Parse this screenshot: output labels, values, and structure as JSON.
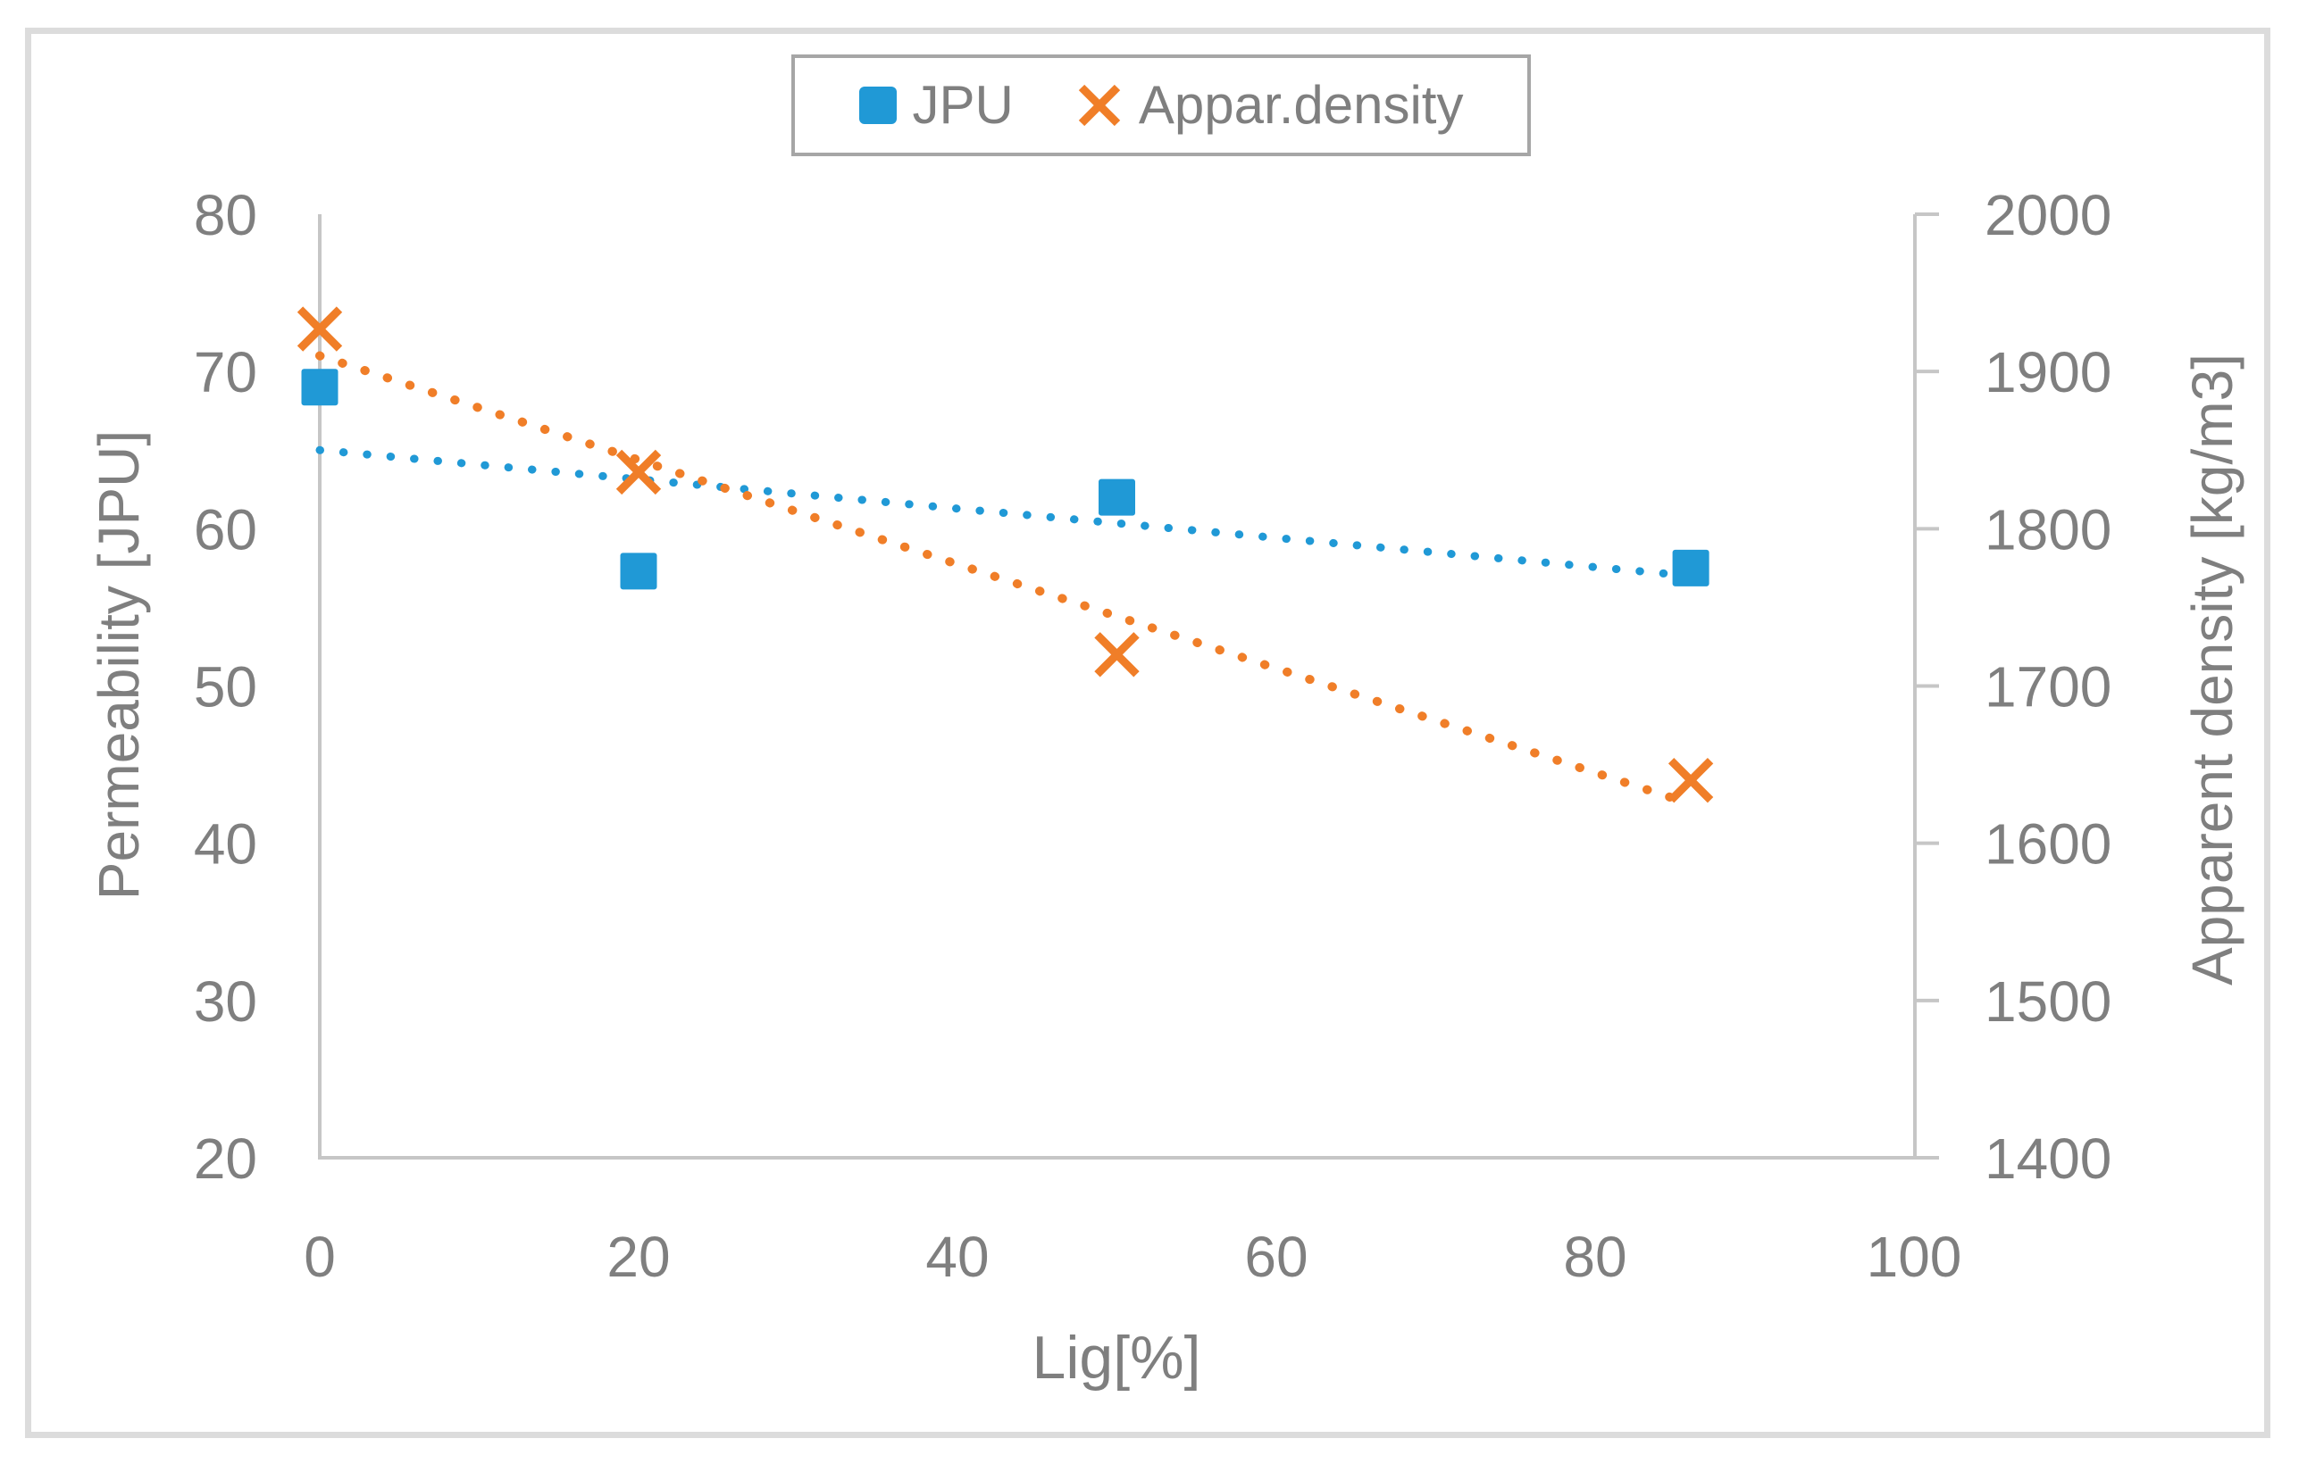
{
  "figure": {
    "background": "#FFFFFF"
  },
  "colors": {
    "jpu": "#2099D6",
    "density": "#F07E28",
    "axis_line": "#C6C6C6",
    "tick_text": "#7F7F7F",
    "figure_border": "#DCDCDC",
    "legend_border": "#A6A6A6"
  },
  "legend": {
    "items": [
      {
        "label": "JPU",
        "marker": "square",
        "color": "#2099D6"
      },
      {
        "label": "Appar.density",
        "marker": "x",
        "color": "#F07E28"
      }
    ]
  },
  "chart_data": {
    "type": "scatter",
    "x": [
      0,
      20,
      50,
      86
    ],
    "series": [
      {
        "name": "JPU",
        "axis": "left",
        "marker": "square",
        "color": "#2099D6",
        "values": [
          69,
          57.3,
          62,
          57.5
        ],
        "trend": {
          "x1": 0,
          "y1": 65.0,
          "x2": 86,
          "y2": 57.0
        }
      },
      {
        "name": "Appar.density",
        "axis": "right",
        "marker": "x",
        "color": "#F07E28",
        "values": [
          1927,
          1836,
          1720,
          1640
        ],
        "trend": {
          "x1": 0,
          "y1": 1910,
          "x2": 86,
          "y2": 1625
        }
      }
    ],
    "x_axis": {
      "title": "Lig[%]",
      "min": 0,
      "max": 100,
      "ticks": [
        0,
        20,
        40,
        60,
        80,
        100
      ]
    },
    "y_left": {
      "title": "Permeability [JPU]",
      "min": 20,
      "max": 80,
      "ticks": [
        20,
        30,
        40,
        50,
        60,
        70,
        80
      ]
    },
    "y_right": {
      "title": "Apparent density [kg/m3]",
      "min": 1400,
      "max": 2000,
      "ticks": [
        1400,
        1500,
        1600,
        1700,
        1800,
        1900,
        2000
      ]
    },
    "grid": false,
    "legend_position": "top"
  }
}
